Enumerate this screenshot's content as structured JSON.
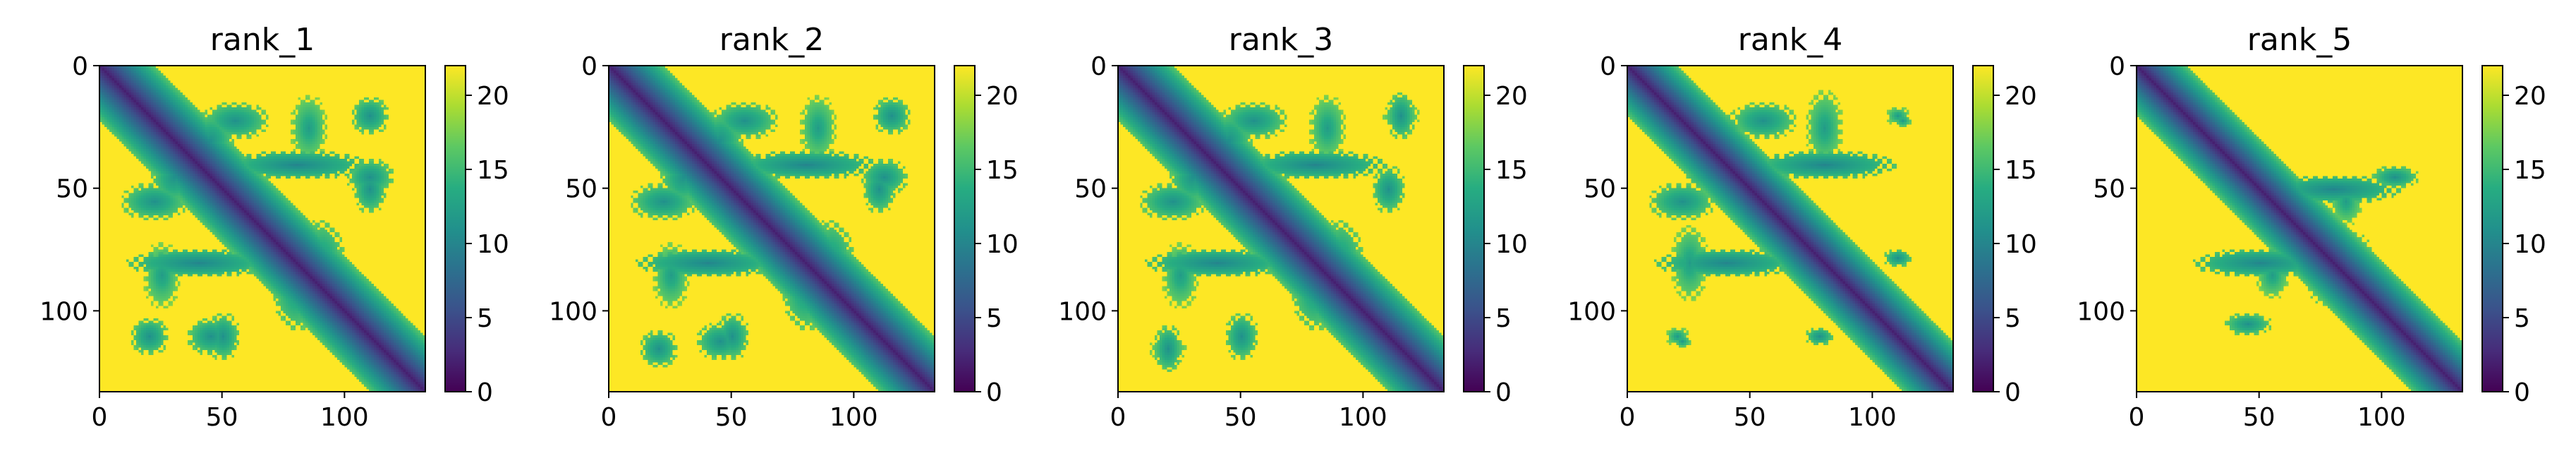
{
  "figure": {
    "background": "#ffffff",
    "colormap": "viridis",
    "colors": {
      "low": "#440154",
      "mid": "#21918c",
      "high": "#fde725"
    }
  },
  "chart_data": [
    {
      "type": "heatmap",
      "title": "rank_1",
      "x_ticks": [
        0,
        50,
        100
      ],
      "y_ticks": [
        0,
        50,
        100
      ],
      "xlim": [
        0,
        133
      ],
      "ylim": [
        133,
        0
      ],
      "colorbar": {
        "ticks": [
          0,
          5,
          10,
          15,
          20
        ],
        "range": [
          0,
          22
        ]
      },
      "features": {
        "diagonal": {
          "width": 22
        },
        "blobs": [
          {
            "i": 22,
            "j": 55,
            "ri": 8,
            "rj": 14,
            "v": 11
          },
          {
            "i": 45,
            "j": 30,
            "ri": 12,
            "rj": 10,
            "v": 11
          },
          {
            "i": 25,
            "j": 85,
            "ri": 14,
            "rj": 8,
            "v": 12
          },
          {
            "i": 50,
            "j": 110,
            "ri": 10,
            "rj": 7,
            "v": 11
          },
          {
            "i": 80,
            "j": 40,
            "ri": 6,
            "rj": 30,
            "v": 10
          },
          {
            "i": 90,
            "j": 80,
            "ri": 18,
            "rj": 10,
            "v": 11
          },
          {
            "i": 110,
            "j": 20,
            "ri": 8,
            "rj": 8,
            "v": 11
          },
          {
            "i": 110,
            "j": 45,
            "ri": 8,
            "rj": 10,
            "v": 11
          },
          {
            "i": 20,
            "j": 110,
            "ri": 6,
            "rj": 8,
            "v": 12
          }
        ]
      }
    },
    {
      "type": "heatmap",
      "title": "rank_2",
      "x_ticks": [
        0,
        50,
        100
      ],
      "y_ticks": [
        0,
        50,
        100
      ],
      "xlim": [
        0,
        133
      ],
      "ylim": [
        133,
        0
      ],
      "colorbar": {
        "ticks": [
          0,
          5,
          10,
          15,
          20
        ],
        "range": [
          0,
          22
        ]
      },
      "features": {
        "diagonal": {
          "width": 22
        },
        "blobs": [
          {
            "i": 22,
            "j": 55,
            "ri": 8,
            "rj": 14,
            "v": 11
          },
          {
            "i": 45,
            "j": 30,
            "ri": 12,
            "rj": 10,
            "v": 11
          },
          {
            "i": 25,
            "j": 85,
            "ri": 14,
            "rj": 8,
            "v": 12
          },
          {
            "i": 50,
            "j": 110,
            "ri": 10,
            "rj": 7,
            "v": 11
          },
          {
            "i": 80,
            "j": 40,
            "ri": 6,
            "rj": 30,
            "v": 10
          },
          {
            "i": 90,
            "j": 80,
            "ri": 18,
            "rj": 10,
            "v": 11
          },
          {
            "i": 115,
            "j": 20,
            "ri": 8,
            "rj": 8,
            "v": 11
          },
          {
            "i": 112,
            "j": 45,
            "ri": 8,
            "rj": 10,
            "v": 11
          },
          {
            "i": 20,
            "j": 115,
            "ri": 6,
            "rj": 8,
            "v": 12
          }
        ]
      }
    },
    {
      "type": "heatmap",
      "title": "rank_3",
      "x_ticks": [
        0,
        50,
        100
      ],
      "y_ticks": [
        0,
        50,
        100
      ],
      "xlim": [
        0,
        133
      ],
      "ylim": [
        133,
        0
      ],
      "colorbar": {
        "ticks": [
          0,
          5,
          10,
          15,
          20
        ],
        "range": [
          0,
          22
        ]
      },
      "features": {
        "diagonal": {
          "width": 22
        },
        "blobs": [
          {
            "i": 22,
            "j": 55,
            "ri": 8,
            "rj": 14,
            "v": 11
          },
          {
            "i": 45,
            "j": 30,
            "ri": 12,
            "rj": 10,
            "v": 11
          },
          {
            "i": 25,
            "j": 85,
            "ri": 14,
            "rj": 8,
            "v": 12
          },
          {
            "i": 50,
            "j": 110,
            "ri": 10,
            "rj": 7,
            "v": 11
          },
          {
            "i": 80,
            "j": 40,
            "ri": 6,
            "rj": 30,
            "v": 10
          },
          {
            "i": 90,
            "j": 80,
            "ri": 18,
            "rj": 10,
            "v": 11
          },
          {
            "i": 115,
            "j": 20,
            "ri": 10,
            "rj": 6,
            "v": 11
          },
          {
            "i": 20,
            "j": 115,
            "ri": 6,
            "rj": 8,
            "v": 12
          }
        ]
      }
    },
    {
      "type": "heatmap",
      "title": "rank_4",
      "x_ticks": [
        0,
        50,
        100
      ],
      "y_ticks": [
        0,
        50,
        100
      ],
      "xlim": [
        0,
        133
      ],
      "ylim": [
        133,
        0
      ],
      "colorbar": {
        "ticks": [
          0,
          5,
          10,
          15,
          20
        ],
        "range": [
          0,
          22
        ]
      },
      "features": {
        "diagonal": {
          "width": 20
        },
        "blobs": [
          {
            "i": 22,
            "j": 55,
            "ri": 8,
            "rj": 14,
            "v": 11
          },
          {
            "i": 40,
            "j": 30,
            "ri": 12,
            "rj": 8,
            "v": 11
          },
          {
            "i": 25,
            "j": 80,
            "ri": 16,
            "rj": 8,
            "v": 12
          },
          {
            "i": 80,
            "j": 40,
            "ri": 6,
            "rj": 30,
            "v": 10
          },
          {
            "i": 85,
            "j": 85,
            "ri": 14,
            "rj": 12,
            "v": 11
          },
          {
            "i": 20,
            "j": 110,
            "ri": 4,
            "rj": 5,
            "v": 12
          },
          {
            "i": 112,
            "j": 22,
            "ri": 3,
            "rj": 4,
            "v": 12
          },
          {
            "i": 110,
            "j": 78,
            "ri": 4,
            "rj": 6,
            "v": 11
          }
        ]
      }
    },
    {
      "type": "heatmap",
      "title": "rank_5",
      "x_ticks": [
        0,
        50,
        100
      ],
      "y_ticks": [
        0,
        50,
        100
      ],
      "xlim": [
        0,
        133
      ],
      "ylim": [
        133,
        0
      ],
      "colorbar": {
        "ticks": [
          0,
          5,
          10,
          15,
          20
        ],
        "range": [
          0,
          22
        ]
      },
      "features": {
        "diagonal": {
          "width": 20
        },
        "blobs": [
          {
            "i": 55,
            "j": 85,
            "ri": 10,
            "rj": 7,
            "v": 12
          },
          {
            "i": 80,
            "j": 50,
            "ri": 6,
            "rj": 28,
            "v": 10
          },
          {
            "i": 85,
            "j": 80,
            "ri": 14,
            "rj": 12,
            "v": 11
          },
          {
            "i": 105,
            "j": 45,
            "ri": 5,
            "rj": 10,
            "v": 11
          }
        ]
      }
    }
  ]
}
